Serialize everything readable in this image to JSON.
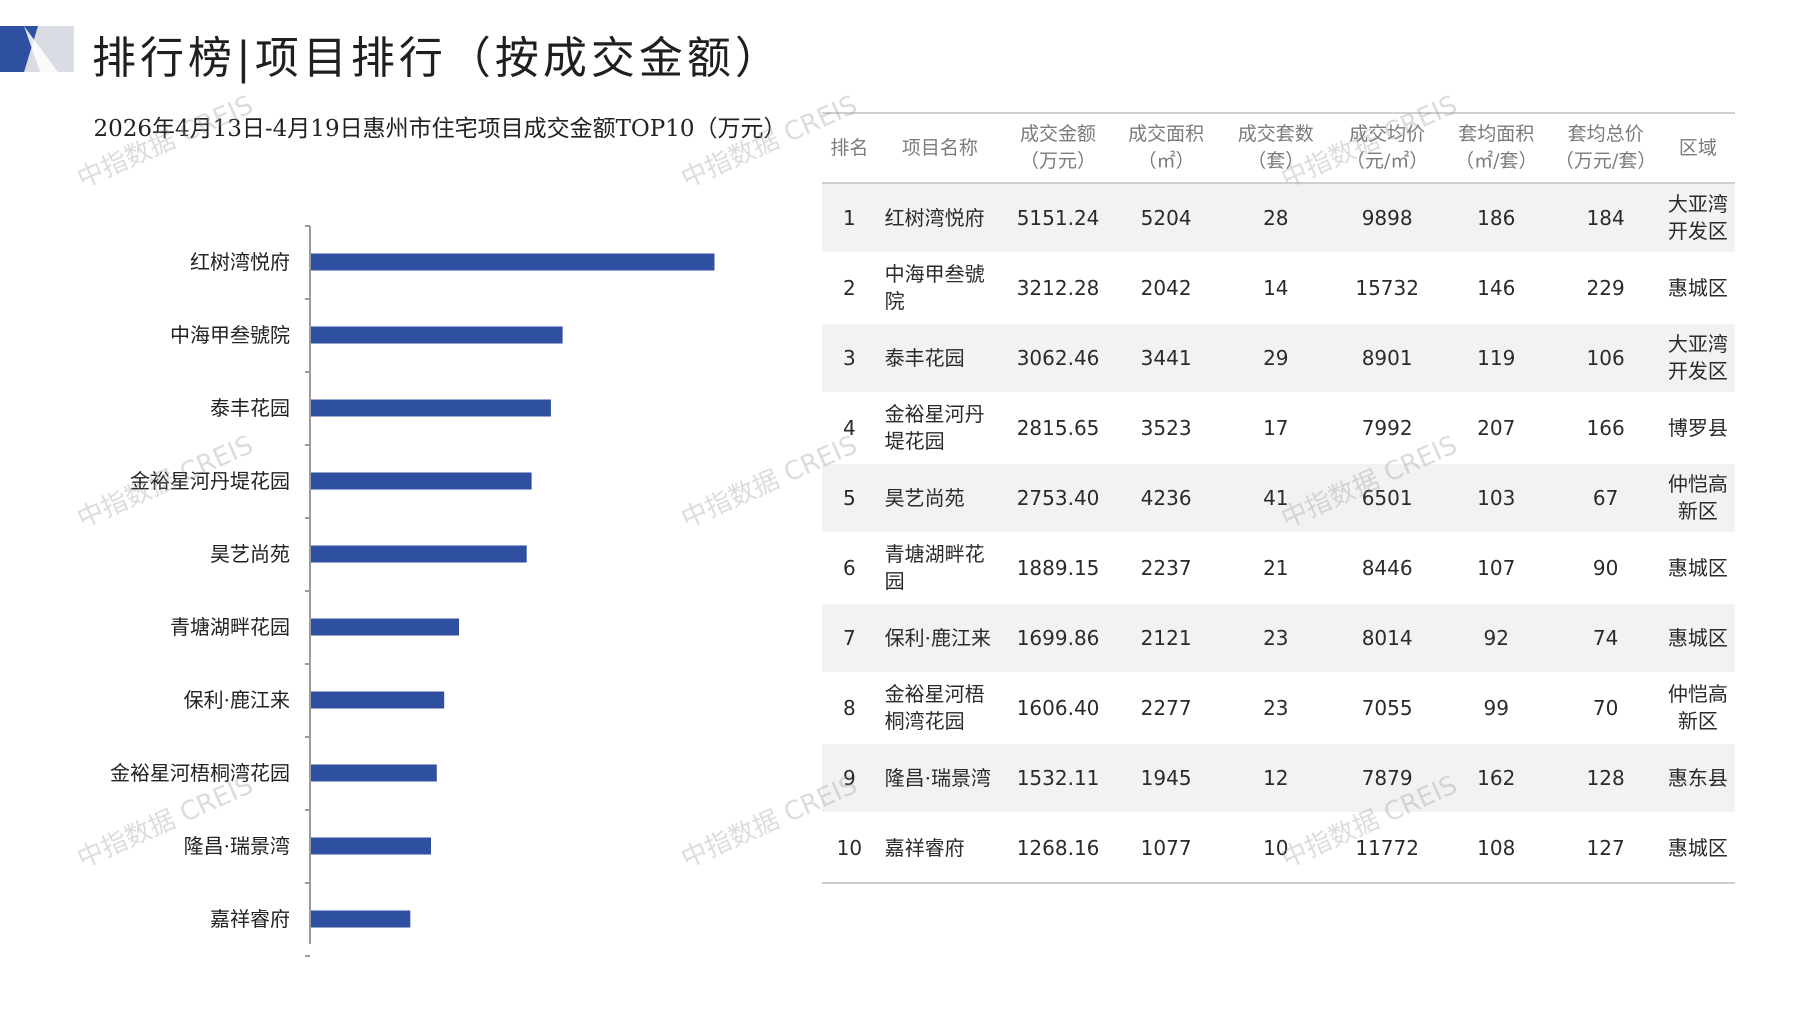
{
  "page": {
    "title": "排行榜|项目排行（按成交金额）",
    "watermark_text": "中指数据 CREIS",
    "accent_color": "#2f4fa0",
    "deco_light_color": "#d9dce3"
  },
  "chart_data": {
    "type": "bar",
    "orientation": "horizontal",
    "title": "2026年4月13日-4月19日惠州市住宅项目成交金额TOP10（万元）",
    "categories": [
      "红树湾悦府",
      "中海甲叁號院",
      "泰丰花园",
      "金裕星河丹堤花园",
      "昊艺尚苑",
      "青塘湖畔花园",
      "保利·鹿江来",
      "金裕星河梧桐湾花园",
      "隆昌·瑞景湾",
      "嘉祥睿府"
    ],
    "values": [
      5151.24,
      3212.28,
      3062.46,
      2815.65,
      2753.4,
      1889.15,
      1699.86,
      1606.4,
      1532.11,
      1268.16
    ],
    "xlim": [
      0,
      6000
    ],
    "bar_color": "#2f4fa0",
    "grid": false,
    "legend": "none"
  },
  "table": {
    "headers": {
      "rank": "排名",
      "name": "项目名称",
      "amount": "成交金额（万元）",
      "area": "成交面积（㎡）",
      "units": "成交套数（套）",
      "price": "成交均价（元/㎡）",
      "avg_area": "套均面积（㎡/套）",
      "avg_total": "套均总价（万元/套）",
      "region": "区域"
    },
    "rows": [
      {
        "rank": "1",
        "name": "红树湾悦府",
        "amount": "5151.24",
        "area": "5204",
        "units": "28",
        "price": "9898",
        "avg_area": "186",
        "avg_total": "184",
        "region": "大亚湾开发区"
      },
      {
        "rank": "2",
        "name": "中海甲叁號院",
        "amount": "3212.28",
        "area": "2042",
        "units": "14",
        "price": "15732",
        "avg_area": "146",
        "avg_total": "229",
        "region": "惠城区"
      },
      {
        "rank": "3",
        "name": "泰丰花园",
        "amount": "3062.46",
        "area": "3441",
        "units": "29",
        "price": "8901",
        "avg_area": "119",
        "avg_total": "106",
        "region": "大亚湾开发区"
      },
      {
        "rank": "4",
        "name": "金裕星河丹堤花园",
        "amount": "2815.65",
        "area": "3523",
        "units": "17",
        "price": "7992",
        "avg_area": "207",
        "avg_total": "166",
        "region": "博罗县"
      },
      {
        "rank": "5",
        "name": "昊艺尚苑",
        "amount": "2753.40",
        "area": "4236",
        "units": "41",
        "price": "6501",
        "avg_area": "103",
        "avg_total": "67",
        "region": "仲恺高新区"
      },
      {
        "rank": "6",
        "name": "青塘湖畔花园",
        "amount": "1889.15",
        "area": "2237",
        "units": "21",
        "price": "8446",
        "avg_area": "107",
        "avg_total": "90",
        "region": "惠城区"
      },
      {
        "rank": "7",
        "name": "保利·鹿江来",
        "amount": "1699.86",
        "area": "2121",
        "units": "23",
        "price": "8014",
        "avg_area": "92",
        "avg_total": "74",
        "region": "惠城区"
      },
      {
        "rank": "8",
        "name": "金裕星河梧桐湾花园",
        "amount": "1606.40",
        "area": "2277",
        "units": "23",
        "price": "7055",
        "avg_area": "99",
        "avg_total": "70",
        "region": "仲恺高新区"
      },
      {
        "rank": "9",
        "name": "隆昌·瑞景湾",
        "amount": "1532.11",
        "area": "1945",
        "units": "12",
        "price": "7879",
        "avg_area": "162",
        "avg_total": "128",
        "region": "惠东县"
      },
      {
        "rank": "10",
        "name": "嘉祥睿府",
        "amount": "1268.16",
        "area": "1077",
        "units": "10",
        "price": "11772",
        "avg_area": "108",
        "avg_total": "127",
        "region": "惠城区"
      }
    ]
  }
}
